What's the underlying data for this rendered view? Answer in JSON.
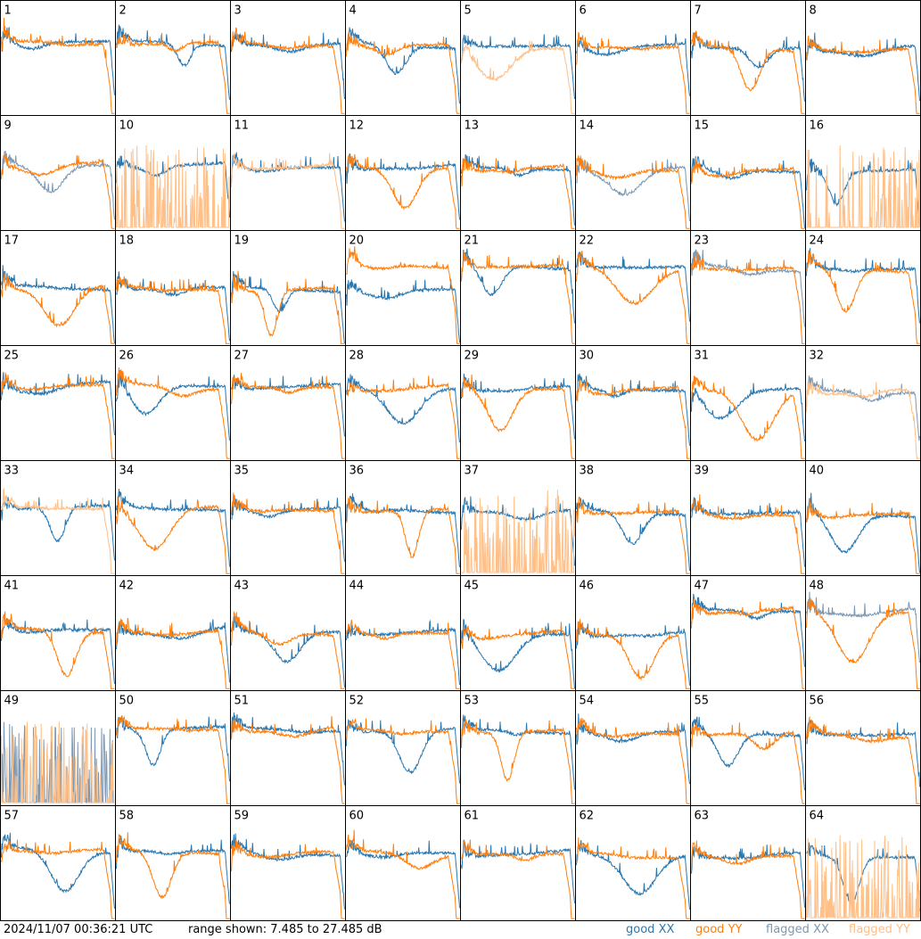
{
  "footer": {
    "timestamp": "2024/11/07 00:36:21 UTC",
    "range_text": "range shown: 7.485 to 27.485 dB",
    "legend": [
      {
        "label": "good",
        "pol": "XX",
        "color": "#2b78b0"
      },
      {
        "label": "good",
        "pol": "YY",
        "color": "#ff7f0e"
      },
      {
        "label": "flagged",
        "pol": "XX",
        "color": "#7c98b3"
      },
      {
        "label": "flagged",
        "pol": "YY",
        "color": "#ffbf87"
      }
    ]
  },
  "colors": {
    "good_xx": "#2b78b0",
    "good_yy": "#ff7f0e",
    "flagged_xx": "#7c98b3",
    "flagged_yy": "#ffbf87",
    "border": "#000000"
  },
  "chart_data": {
    "type": "line",
    "layout": "8x8 grid of small spectra",
    "yunit": "dB",
    "ylim": [
      7.485,
      27.485
    ],
    "grid": false,
    "tiles": [
      {
        "label": "1",
        "xx": "good",
        "yy": "good"
      },
      {
        "label": "2",
        "xx": "good",
        "yy": "good"
      },
      {
        "label": "3",
        "xx": "good",
        "yy": "good"
      },
      {
        "label": "4",
        "xx": "good",
        "yy": "good"
      },
      {
        "label": "5",
        "xx": "good",
        "yy": "flagged"
      },
      {
        "label": "6",
        "xx": "good",
        "yy": "good"
      },
      {
        "label": "7",
        "xx": "good",
        "yy": "good"
      },
      {
        "label": "8",
        "xx": "good",
        "yy": "good"
      },
      {
        "label": "9",
        "xx": "flagged",
        "yy": "good"
      },
      {
        "label": "10",
        "xx": "good",
        "yy": "flagged"
      },
      {
        "label": "11",
        "xx": "good",
        "yy": "flagged"
      },
      {
        "label": "12",
        "xx": "good",
        "yy": "good"
      },
      {
        "label": "13",
        "xx": "good",
        "yy": "good"
      },
      {
        "label": "14",
        "xx": "flagged",
        "yy": "good"
      },
      {
        "label": "15",
        "xx": "good",
        "yy": "good"
      },
      {
        "label": "16",
        "xx": "good",
        "yy": "flagged"
      },
      {
        "label": "17",
        "xx": "good",
        "yy": "good"
      },
      {
        "label": "18",
        "xx": "good",
        "yy": "good"
      },
      {
        "label": "19",
        "xx": "good",
        "yy": "good"
      },
      {
        "label": "20",
        "xx": "good",
        "yy": "good"
      },
      {
        "label": "21",
        "xx": "good",
        "yy": "good"
      },
      {
        "label": "22",
        "xx": "good",
        "yy": "good"
      },
      {
        "label": "23",
        "xx": "flagged",
        "yy": "good"
      },
      {
        "label": "24",
        "xx": "good",
        "yy": "good"
      },
      {
        "label": "25",
        "xx": "good",
        "yy": "good"
      },
      {
        "label": "26",
        "xx": "good",
        "yy": "good"
      },
      {
        "label": "27",
        "xx": "good",
        "yy": "good"
      },
      {
        "label": "28",
        "xx": "good",
        "yy": "good"
      },
      {
        "label": "29",
        "xx": "good",
        "yy": "good"
      },
      {
        "label": "30",
        "xx": "good",
        "yy": "good"
      },
      {
        "label": "31",
        "xx": "good",
        "yy": "good"
      },
      {
        "label": "32",
        "xx": "flagged",
        "yy": "flagged"
      },
      {
        "label": "33",
        "xx": "good",
        "yy": "flagged"
      },
      {
        "label": "34",
        "xx": "good",
        "yy": "good"
      },
      {
        "label": "35",
        "xx": "good",
        "yy": "good"
      },
      {
        "label": "36",
        "xx": "good",
        "yy": "good"
      },
      {
        "label": "37",
        "xx": "good",
        "yy": "flagged"
      },
      {
        "label": "38",
        "xx": "good",
        "yy": "good"
      },
      {
        "label": "39",
        "xx": "good",
        "yy": "good"
      },
      {
        "label": "40",
        "xx": "good",
        "yy": "good"
      },
      {
        "label": "41",
        "xx": "good",
        "yy": "good"
      },
      {
        "label": "42",
        "xx": "good",
        "yy": "good"
      },
      {
        "label": "43",
        "xx": "good",
        "yy": "good"
      },
      {
        "label": "44",
        "xx": "good",
        "yy": "good"
      },
      {
        "label": "45",
        "xx": "good",
        "yy": "good"
      },
      {
        "label": "46",
        "xx": "good",
        "yy": "good"
      },
      {
        "label": "47",
        "xx": "good",
        "yy": "good"
      },
      {
        "label": "48",
        "xx": "flagged",
        "yy": "good"
      },
      {
        "label": "49",
        "xx": "flagged",
        "yy": "flagged"
      },
      {
        "label": "50",
        "xx": "good",
        "yy": "good"
      },
      {
        "label": "51",
        "xx": "good",
        "yy": "good"
      },
      {
        "label": "52",
        "xx": "good",
        "yy": "good"
      },
      {
        "label": "53",
        "xx": "good",
        "yy": "good"
      },
      {
        "label": "54",
        "xx": "good",
        "yy": "good"
      },
      {
        "label": "55",
        "xx": "good",
        "yy": "good"
      },
      {
        "label": "56",
        "xx": "good",
        "yy": "good"
      },
      {
        "label": "57",
        "xx": "good",
        "yy": "good"
      },
      {
        "label": "58",
        "xx": "good",
        "yy": "good"
      },
      {
        "label": "59",
        "xx": "good",
        "yy": "good"
      },
      {
        "label": "60",
        "xx": "good",
        "yy": "good"
      },
      {
        "label": "61",
        "xx": "good",
        "yy": "good"
      },
      {
        "label": "62",
        "xx": "good",
        "yy": "good"
      },
      {
        "label": "63",
        "xx": "good",
        "yy": "good"
      },
      {
        "label": "64",
        "xx": "good",
        "yy": "flagged"
      }
    ]
  }
}
